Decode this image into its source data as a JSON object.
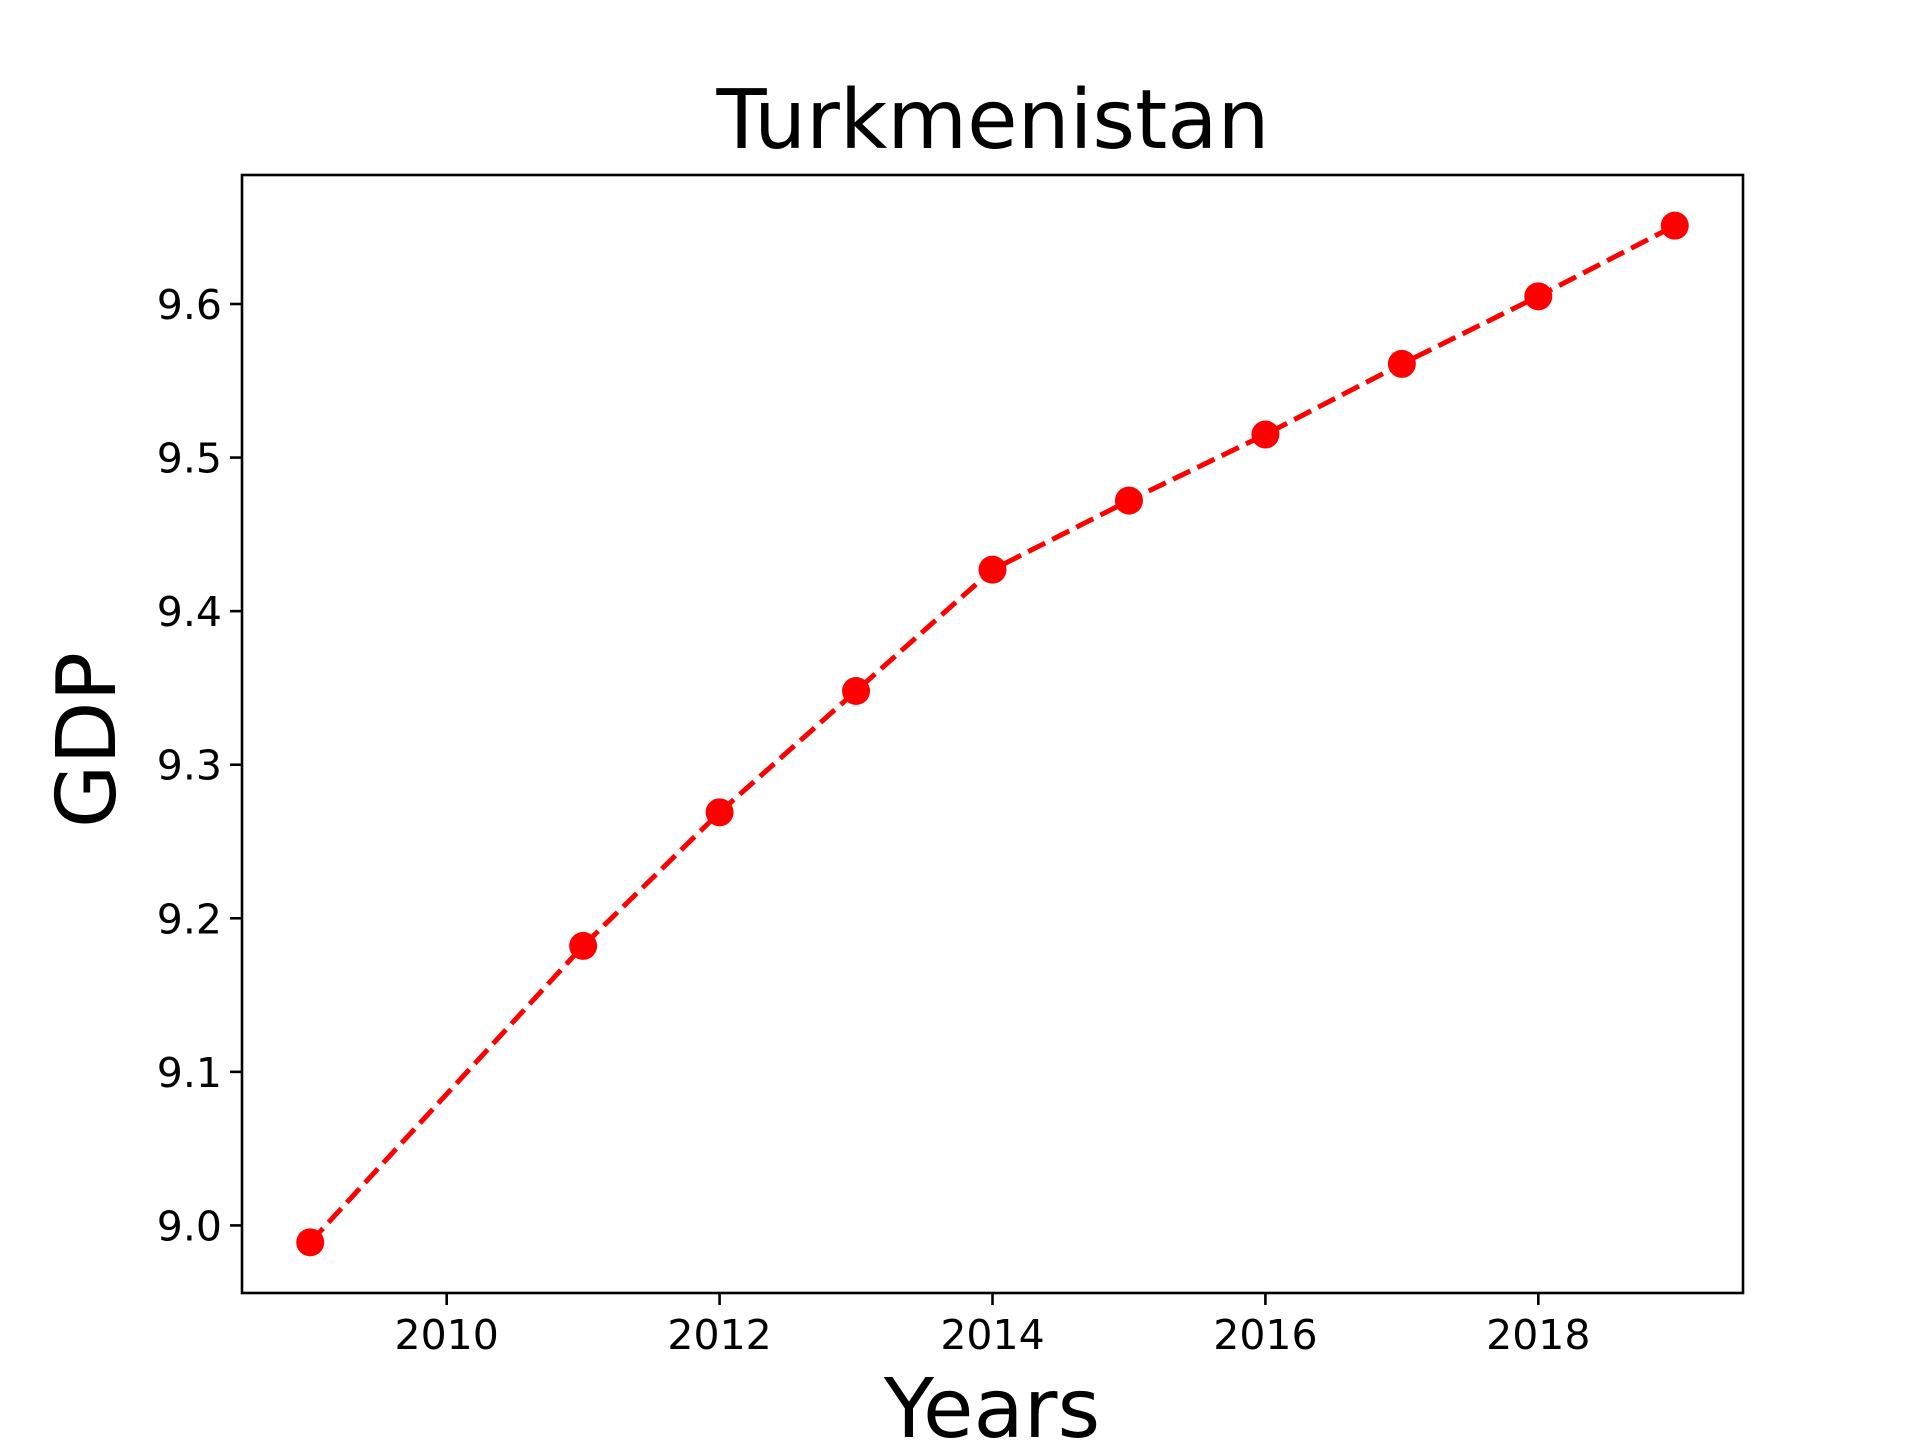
{
  "chart_data": {
    "type": "line",
    "title": "Turkmenistan",
    "xlabel": "Years",
    "ylabel": "GDP",
    "x_ticks": [
      "2010",
      "2012",
      "2014",
      "2016",
      "2018"
    ],
    "y_ticks": [
      "9.0",
      "9.1",
      "9.2",
      "9.3",
      "9.4",
      "9.5",
      "9.6"
    ],
    "xlim": [
      2008.5,
      2019.5
    ],
    "ylim": [
      8.956,
      9.684
    ],
    "grid": false,
    "legend": "none",
    "series": [
      {
        "color": "#ff0000",
        "line_style": "dashed",
        "marker": "circle",
        "x": [
          2009,
          2011,
          2012,
          2013,
          2014,
          2015,
          2016,
          2017,
          2018,
          2019
        ],
        "y": [
          8.989,
          9.182,
          9.269,
          9.348,
          9.427,
          9.472,
          9.515,
          9.561,
          9.605,
          9.651
        ]
      }
    ]
  }
}
